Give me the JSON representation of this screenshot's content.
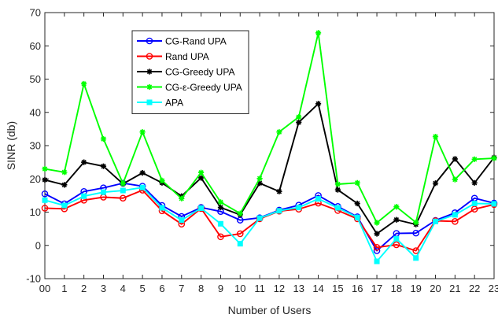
{
  "chart_data": {
    "type": "line",
    "title": "",
    "xlabel": "Number of Users",
    "ylabel": "SINR (db)",
    "xlim": [
      0,
      23
    ],
    "ylim": [
      -10,
      70
    ],
    "x": [
      0,
      1,
      2,
      3,
      4,
      5,
      6,
      7,
      8,
      9,
      10,
      11,
      12,
      13,
      14,
      15,
      16,
      17,
      18,
      19,
      20,
      21,
      22,
      23
    ],
    "x_tick_labels": [
      "00",
      "1",
      "2",
      "3",
      "4",
      "5",
      "6",
      "7",
      "8",
      "9",
      "10",
      "11",
      "12",
      "13",
      "14",
      "15",
      "16",
      "17",
      "18",
      "19",
      "20",
      "21",
      "22",
      "23"
    ],
    "y_ticks": [
      -10,
      0,
      10,
      20,
      30,
      40,
      50,
      60,
      70
    ],
    "grid": false,
    "legend_position": "upper-left",
    "series": [
      {
        "name": "CG-Rand UPA",
        "color": "#0000ff",
        "marker": "circle",
        "values": [
          15.5,
          12.5,
          16.2,
          17.3,
          18.7,
          17.8,
          12.0,
          8.7,
          11.4,
          10.2,
          7.6,
          8.3,
          10.6,
          12.1,
          15.0,
          11.7,
          8.6,
          -1.6,
          3.6,
          3.7,
          7.5,
          9.8,
          14.2,
          12.7
        ]
      },
      {
        "name": "Rand UPA",
        "color": "#ff0000",
        "marker": "circle",
        "values": [
          11.2,
          11.0,
          13.6,
          14.5,
          14.2,
          16.6,
          10.4,
          6.4,
          11.1,
          2.6,
          3.5,
          8.0,
          10.3,
          10.9,
          12.7,
          10.5,
          8.0,
          -0.6,
          0.2,
          -1.6,
          7.4,
          7.2,
          10.9,
          12.3
        ]
      },
      {
        "name": "CG-Greedy UPA",
        "color": "#000000",
        "marker": "star",
        "values": [
          19.7,
          18.2,
          25.0,
          23.8,
          18.5,
          21.8,
          18.8,
          14.8,
          20.3,
          11.4,
          9.2,
          18.7,
          16.2,
          37.0,
          42.6,
          16.7,
          12.6,
          3.5,
          7.7,
          6.3,
          18.7,
          26.0,
          18.8,
          26.4
        ]
      },
      {
        "name": "CG-ε-Greedy UPA",
        "color": "#00ff00",
        "marker": "star",
        "values": [
          23.0,
          22.0,
          48.6,
          32.0,
          18.6,
          34.1,
          19.5,
          14.1,
          21.9,
          13.0,
          9.6,
          20.1,
          34.1,
          38.6,
          63.9,
          18.4,
          18.8,
          6.8,
          11.6,
          6.9,
          32.7,
          19.8,
          25.9,
          26.2
        ]
      },
      {
        "name": "APA",
        "color": "#00ffff",
        "marker": "square",
        "values": [
          13.6,
          12.0,
          14.8,
          16.0,
          16.5,
          17.4,
          11.3,
          7.6,
          11.2,
          6.5,
          0.5,
          8.2,
          10.4,
          11.4,
          14.0,
          11.3,
          8.4,
          -4.8,
          2.0,
          -3.8,
          7.2,
          9.2,
          12.6,
          12.5
        ]
      }
    ]
  }
}
